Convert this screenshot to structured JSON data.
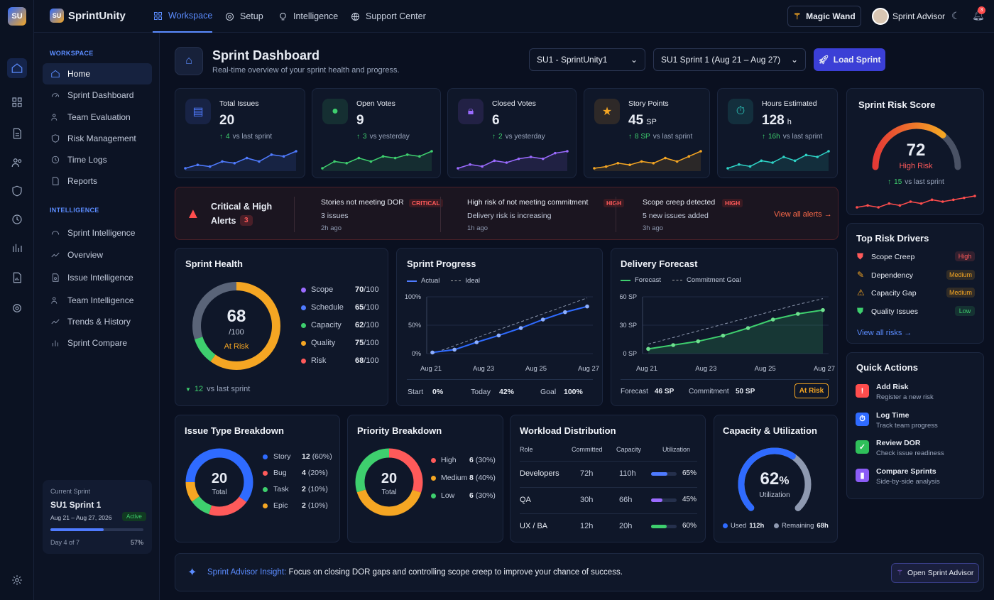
{
  "brand": {
    "logo": "SU",
    "name": "SprintUnity"
  },
  "topnav": [
    {
      "label": "Workspace",
      "icon": "grid-icon"
    },
    {
      "label": "Setup",
      "icon": "gear-icon"
    },
    {
      "label": "Intelligence",
      "icon": "bulb-icon"
    },
    {
      "label": "Support Center",
      "icon": "globe-icon"
    }
  ],
  "magic_wand": "Magic Wand",
  "user": {
    "name": "Sprint Advisor",
    "notifications": "3"
  },
  "sidebar": {
    "workspace_title": "WORKSPACE",
    "workspace_items": [
      "Home",
      "Sprint Dashboard",
      "Team Evaluation",
      "Risk Management",
      "Time Logs",
      "Reports"
    ],
    "intel_title": "INTELLIGENCE",
    "intel_items": [
      "Sprint Intelligence",
      "Overview",
      "Issue Intelligence",
      "Team Intelligence",
      "Trends & History",
      "Sprint Compare"
    ],
    "current": {
      "label": "Current Sprint",
      "name": "SU1 Sprint 1",
      "dates": "Aug 21 – Aug 27, 2026",
      "status": "Active",
      "day": "Day 4 of 7",
      "pct": "57%",
      "progress": 0.57
    }
  },
  "header": {
    "title": "Sprint Dashboard",
    "subtitle": "Real-time overview of your sprint health and progress.",
    "project": "SU1 - SprintUnity1",
    "sprint": "SU1 Sprint 1 (Aug 21 – Aug 27)",
    "load": "Load Sprint"
  },
  "kpis": [
    {
      "label": "Total Issues",
      "value": "20",
      "unit": "",
      "delta": "4",
      "delta_text": "vs last sprint",
      "color": "#4f7bff",
      "icon": "document-icon",
      "spark": [
        3,
        4,
        3.5,
        5,
        4.5,
        6,
        5,
        7,
        6.5,
        8
      ]
    },
    {
      "label": "Open Votes",
      "value": "9",
      "unit": "",
      "delta": "3",
      "delta_text": "vs yesterday",
      "color": "#3ecf6e",
      "icon": "circle-icon",
      "spark": [
        2,
        4,
        3.5,
        5,
        4,
        5.5,
        5,
        6,
        5.5,
        7
      ]
    },
    {
      "label": "Closed Votes",
      "value": "6",
      "unit": "",
      "delta": "2",
      "delta_text": "vs yesterday",
      "color": "#9b6bff",
      "icon": "lock-icon",
      "spark": [
        2,
        3,
        2.5,
        4,
        3.5,
        4.5,
        5,
        4.5,
        6,
        6.5
      ]
    },
    {
      "label": "Story Points",
      "value": "45",
      "unit": "SP",
      "delta": "8 SP",
      "delta_text": "vs last sprint",
      "color": "#f5a623",
      "icon": "star-icon",
      "spark": [
        2,
        2.5,
        3.5,
        3,
        4,
        3.5,
        5,
        4,
        5.5,
        7
      ]
    },
    {
      "label": "Hours Estimated",
      "value": "128",
      "unit": "h",
      "delta": "16h",
      "delta_text": "vs last sprint",
      "color": "#2ed3c6",
      "icon": "timer-icon",
      "spark": [
        2,
        3,
        2.5,
        4,
        3.5,
        5,
        4,
        5.5,
        5,
        6.5
      ]
    }
  ],
  "risk_score": {
    "title": "Sprint Risk Score",
    "value": "72",
    "pct": 0.72,
    "label": "High Risk",
    "delta": "15",
    "delta_text": "vs last sprint",
    "spark": [
      3,
      3.5,
      3,
      4,
      3.5,
      4.5,
      4,
      5,
      4.5,
      5,
      5.5,
      6
    ]
  },
  "alerts": {
    "title": "Critical & High",
    "title2": "Alerts",
    "count": "3",
    "view": "View all alerts →",
    "items": [
      {
        "title": "Stories not meeting DOR",
        "level": "CRITICAL",
        "desc": "3 issues",
        "time": "2h ago"
      },
      {
        "title": "High risk of not meeting commitment",
        "level": "HIGH",
        "desc": "Delivery risk is increasing",
        "time": "1h ago"
      },
      {
        "title": "Scope creep detected",
        "level": "HIGH",
        "desc": "5 new issues added",
        "time": "3h ago"
      }
    ]
  },
  "health": {
    "title": "Sprint Health",
    "score": "68",
    "of": "/100",
    "status": "At Risk",
    "delta": "12",
    "delta_text": "vs last sprint",
    "metrics": [
      {
        "name": "Scope",
        "value": "70",
        "of": "/100",
        "color": "#9b6bff"
      },
      {
        "name": "Schedule",
        "value": "65",
        "of": "/100",
        "color": "#4f7bff"
      },
      {
        "name": "Capacity",
        "value": "62",
        "of": "/100",
        "color": "#3ecf6e"
      },
      {
        "name": "Quality",
        "value": "75",
        "of": "/100",
        "color": "#f5a623"
      },
      {
        "name": "Risk",
        "value": "68",
        "of": "/100",
        "color": "#ff5a5a"
      }
    ],
    "ring": [
      {
        "frac": 0.6,
        "color": "#f5a623"
      },
      {
        "frac": 0.1,
        "color": "#3ecf6e"
      },
      {
        "frac": 0.3,
        "color": "#5a6478"
      }
    ]
  },
  "progress": {
    "title": "Sprint Progress",
    "legend_actual": "Actual",
    "legend_ideal": "Ideal",
    "y_ticks": [
      "100%",
      "50%",
      "0%"
    ],
    "x_ticks": [
      "Aug 21",
      "Aug 23",
      "Aug 25",
      "Aug 27"
    ],
    "actual": [
      2,
      7,
      20,
      32,
      45,
      60,
      73,
      83
    ],
    "ideal": [
      0,
      14,
      28,
      42,
      56,
      70,
      84,
      98
    ],
    "footer": [
      {
        "label": "Start",
        "value": "0%"
      },
      {
        "label": "Today",
        "value": "42%"
      },
      {
        "label": "Goal",
        "value": "100%"
      }
    ]
  },
  "forecast": {
    "title": "Delivery Forecast",
    "legend_forecast": "Forecast",
    "legend_goal": "Commitment Goal",
    "y_ticks": [
      "60 SP",
      "30 SP",
      "0 SP"
    ],
    "x_ticks": [
      "Aug 21",
      "Aug 23",
      "Aug 25",
      "Aug 27"
    ],
    "forecast": [
      5,
      9,
      13,
      19,
      27,
      36,
      42,
      46
    ],
    "goal": [
      10,
      17,
      24,
      31,
      38,
      45,
      52,
      58
    ],
    "footer_forecast_label": "Forecast",
    "footer_forecast": "46 SP",
    "footer_commit_label": "Commitment",
    "footer_commit": "50 SP",
    "status": "At Risk"
  },
  "issue_types": {
    "title": "Issue Type Breakdown",
    "total": "20",
    "total_label": "Total",
    "items": [
      {
        "name": "Story",
        "count": "12",
        "pct": "(60%)",
        "color": "#2f6bff",
        "frac": 0.6
      },
      {
        "name": "Bug",
        "count": "4",
        "pct": "(20%)",
        "color": "#ff5a5a",
        "frac": 0.2
      },
      {
        "name": "Task",
        "count": "2",
        "pct": "(10%)",
        "color": "#3ecf6e",
        "frac": 0.1
      },
      {
        "name": "Epic",
        "count": "2",
        "pct": "(10%)",
        "color": "#f5a623",
        "frac": 0.1
      }
    ]
  },
  "priority": {
    "title": "Priority Breakdown",
    "total": "20",
    "total_label": "Total",
    "items": [
      {
        "name": "High",
        "count": "6",
        "pct": "(30%)",
        "color": "#ff5a5a",
        "frac": 0.3
      },
      {
        "name": "Medium",
        "count": "8",
        "pct": "(40%)",
        "color": "#f5a623",
        "frac": 0.4
      },
      {
        "name": "Low",
        "count": "6",
        "pct": "(30%)",
        "color": "#3ecf6e",
        "frac": 0.3
      }
    ]
  },
  "workload": {
    "title": "Workload Distribution",
    "headers": [
      "Role",
      "Committed",
      "Capacity",
      "Utilization"
    ],
    "rows": [
      {
        "role": "Developers",
        "committed": "72h",
        "capacity": "110h",
        "util": "65%",
        "frac": 0.65,
        "color": "#4f7bff"
      },
      {
        "role": "QA",
        "committed": "30h",
        "capacity": "66h",
        "util": "45%",
        "frac": 0.45,
        "color": "#9b6bff"
      },
      {
        "role": "UX / BA",
        "committed": "12h",
        "capacity": "20h",
        "util": "60%",
        "frac": 0.6,
        "color": "#3ecf6e"
      }
    ]
  },
  "capacity": {
    "title": "Capacity & Utilization",
    "value": "62",
    "unit": "%",
    "label": "Utilization",
    "frac": 0.62,
    "used_label": "Used",
    "used": "112h",
    "rem_label": "Remaining",
    "rem": "68h"
  },
  "drivers": {
    "title": "Top Risk Drivers",
    "view": "View all risks →",
    "items": [
      {
        "name": "Scope Creep",
        "level": "High",
        "color": "#ff5a5a",
        "icon": "shield-alert-icon"
      },
      {
        "name": "Dependency",
        "level": "Medium",
        "color": "#f5a623",
        "icon": "pencil-icon"
      },
      {
        "name": "Capacity Gap",
        "level": "Medium",
        "color": "#f5a623",
        "icon": "warning-icon"
      },
      {
        "name": "Quality Issues",
        "level": "Low",
        "color": "#3ecf6e",
        "icon": "shield-check-icon"
      }
    ]
  },
  "quick": {
    "title": "Quick Actions",
    "items": [
      {
        "name": "Add Risk",
        "desc": "Register a new risk",
        "color": "#ff4d4d",
        "icon": "alert-icon"
      },
      {
        "name": "Log Time",
        "desc": "Track team progress",
        "color": "#2f6bff",
        "icon": "stopwatch-icon"
      },
      {
        "name": "Review DOR",
        "desc": "Check issue readiness",
        "color": "#2fbf5a",
        "icon": "checklist-icon"
      },
      {
        "name": "Compare Sprints",
        "desc": "Side-by-side analysis",
        "color": "#8b5cf6",
        "icon": "bar-chart-icon"
      }
    ]
  },
  "insight": {
    "label": "Sprint Advisor Insight:",
    "text": "Focus on closing DOR gaps and controlling scope creep to improve your chance of success.",
    "button": "Open Sprint Advisor"
  }
}
